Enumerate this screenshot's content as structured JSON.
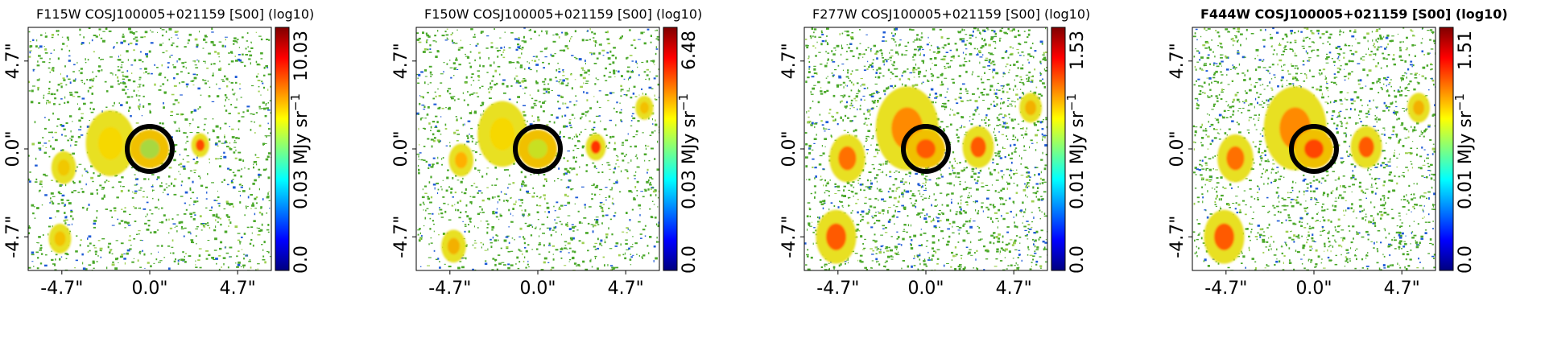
{
  "colors": {
    "background": "#ffffff",
    "ring": "#000000",
    "field_noise": "#4aa82a",
    "field_sparse": "#1f5bd6"
  },
  "colormap": [
    "#00007f",
    "#0000ff",
    "#007fff",
    "#00ffff",
    "#7fff7f",
    "#ffff00",
    "#ff7f00",
    "#ff0000",
    "#7f0000"
  ],
  "chart_data": [
    {
      "type": "heatmap",
      "title": "F115W COSJ100005+021159 [S00] (log10)",
      "title_bold": false,
      "density": 0.55,
      "x_ticks": [
        "-4.7\"",
        "0.0\"",
        "4.7\""
      ],
      "y_ticks": [
        "-4.7\"",
        "0.0\"",
        "4.7\""
      ],
      "colorbar": {
        "min_label": "0.0",
        "mid_label": "0.03 MJy sr",
        "unit_superscript": "−1",
        "max_label": "10.03",
        "min": 0.0,
        "max": 10.03
      }
    },
    {
      "type": "heatmap",
      "title": "F150W COSJ100005+021159 [S00] (log10)",
      "title_bold": false,
      "density": 0.6,
      "x_ticks": [
        "-4.7\"",
        "0.0\"",
        "4.7\""
      ],
      "y_ticks": [
        "-4.7\"",
        "0.0\"",
        "4.7\""
      ],
      "colorbar": {
        "min_label": "0.0",
        "mid_label": "0.03 MJy sr",
        "unit_superscript": "−1",
        "max_label": "6.48",
        "min": 0.0,
        "max": 6.48
      }
    },
    {
      "type": "heatmap",
      "title": "F277W COSJ100005+021159 [S00] (log10)",
      "title_bold": false,
      "density": 0.8,
      "x_ticks": [
        "-4.7\"",
        "0.0\"",
        "4.7\""
      ],
      "y_ticks": [
        "-4.7\"",
        "0.0\"",
        "4.7\""
      ],
      "colorbar": {
        "min_label": "0.0",
        "mid_label": "0.01 MJy sr",
        "unit_superscript": "−1",
        "max_label": "1.53",
        "min": 0.0,
        "max": 1.53
      }
    },
    {
      "type": "heatmap",
      "title": "F444W COSJ100005+021159 [S00] (log10)",
      "title_bold": true,
      "density": 0.75,
      "x_ticks": [
        "-4.7\"",
        "0.0\"",
        "4.7\""
      ],
      "y_ticks": [
        "-4.7\"",
        "0.0\"",
        "4.7\""
      ],
      "colorbar": {
        "min_label": "0.0",
        "mid_label": "0.01 MJy sr",
        "unit_superscript": "−1",
        "max_label": "1.51",
        "min": 0.0,
        "max": 1.51
      }
    }
  ]
}
